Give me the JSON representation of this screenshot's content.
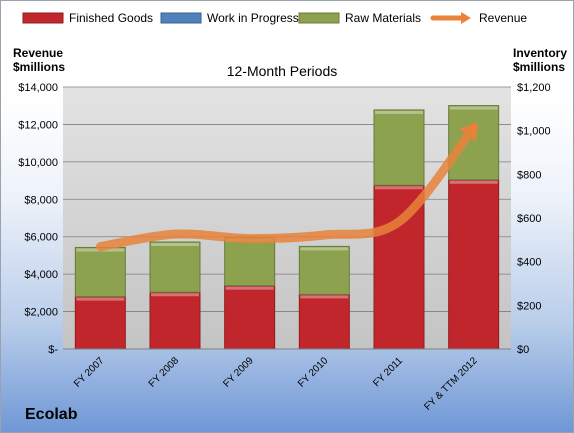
{
  "company": "Ecolab",
  "chart_data": {
    "type": "bar",
    "stacked": true,
    "title": "12-Month Periods",
    "categories": [
      "FY 2007",
      "FY 2008",
      "FY 2009",
      "FY 2010",
      "FY 2011",
      "FY & TTM 2012"
    ],
    "series": [
      {
        "name": "Finished Goods",
        "axis": "right",
        "color": "#c0262c",
        "values": [
          240,
          260,
          290,
          250,
          750,
          775
        ]
      },
      {
        "name": "Work in Progress",
        "axis": "right",
        "color": "#4f81bd",
        "values": [
          0,
          0,
          0,
          0,
          0,
          0
        ]
      },
      {
        "name": "Raw Materials",
        "axis": "right",
        "color": "#8ca24f",
        "values": [
          225,
          230,
          220,
          220,
          345,
          340
        ]
      },
      {
        "name": "Revenue",
        "axis": "left",
        "type": "line",
        "color": "#e9823b",
        "values": [
          5470,
          6137,
          5900,
          6090,
          6800,
          11840
        ]
      }
    ],
    "y_left": {
      "label_line1": "Revenue",
      "label_line2": "$millions",
      "ylim": [
        0,
        14000
      ],
      "ticks": [
        "$-",
        "$2,000",
        "$4,000",
        "$6,000",
        "$8,000",
        "$10,000",
        "$12,000",
        "$14,000"
      ]
    },
    "y_right": {
      "label_line1": "Inventory",
      "label_line2": "$millions",
      "ylim": [
        0,
        1200
      ],
      "ticks": [
        "$0",
        "$200",
        "$400",
        "$600",
        "$800",
        "$1,000",
        "$1,200"
      ]
    },
    "grid": true,
    "legend": "top"
  }
}
